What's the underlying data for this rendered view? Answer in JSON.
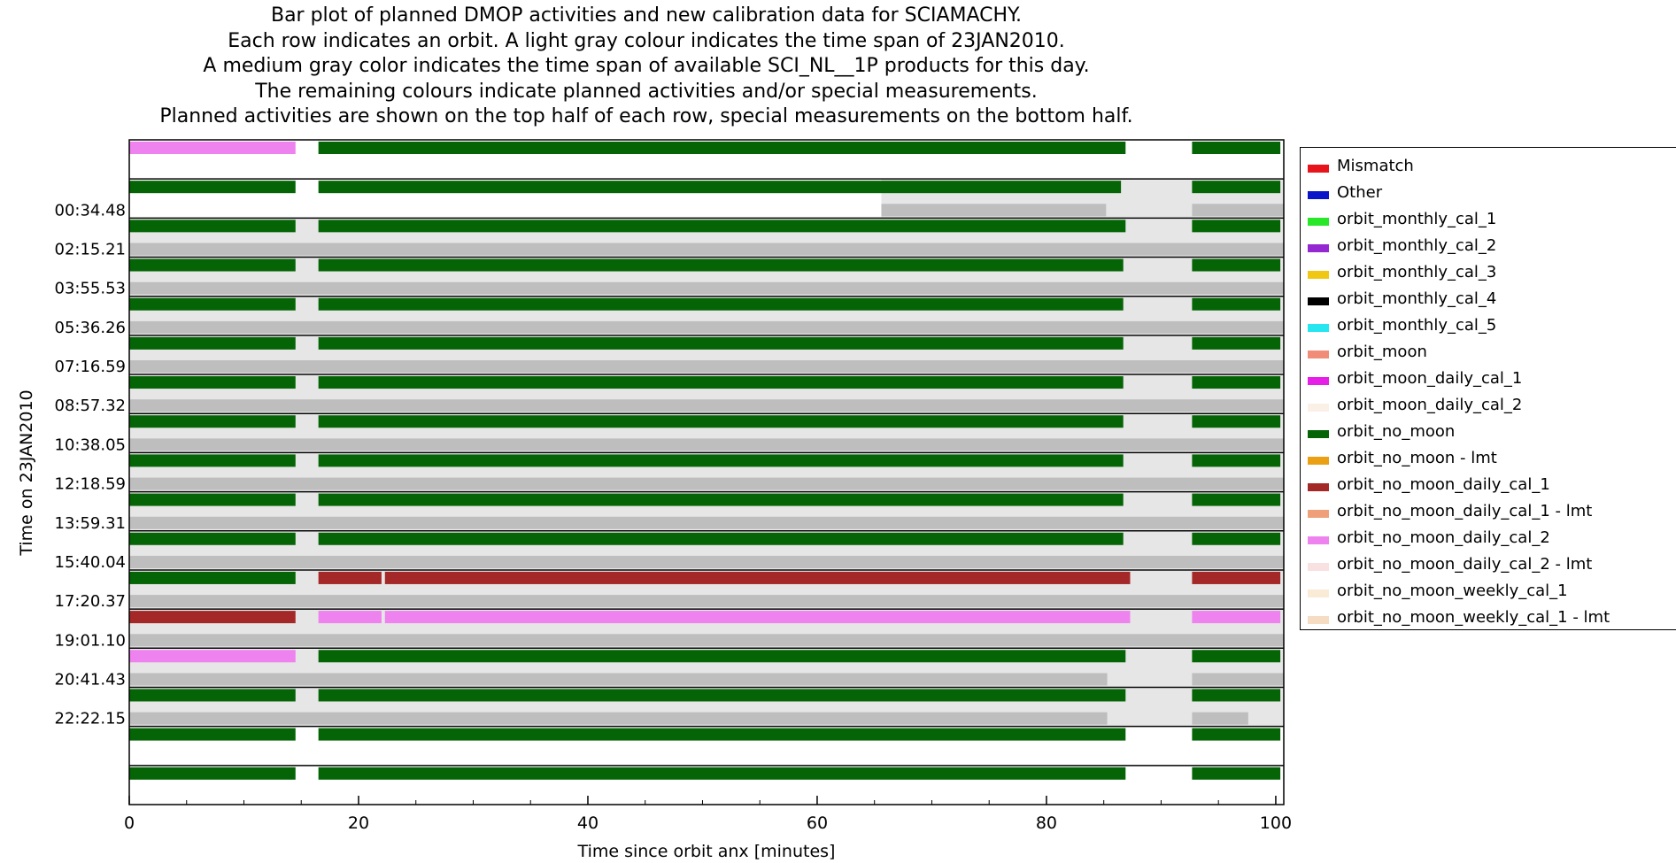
{
  "title_lines": [
    "Bar plot of planned DMOP activities and new calibration data for SCIAMACHY.",
    "Each row indicates an orbit. A light gray colour indicates the time span of 23JAN2010.",
    "A medium gray color indicates the time span of available SCI_NL__1P products for this day.",
    "The remaining colours indicate planned activities and/or special measurements.",
    "Planned activities are shown on the top half of each row, special measurements on the bottom half."
  ],
  "colors": {
    "light_gray": "#e6e6e6",
    "medium_gray": "#bebebe",
    "Mismatch": "#e8141c",
    "Other": "#0a14c8",
    "orbit_monthly_cal_1": "#28e628",
    "orbit_monthly_cal_2": "#9628d2",
    "orbit_monthly_cal_3": "#f0c814",
    "orbit_monthly_cal_4": "#000000",
    "orbit_monthly_cal_5": "#28e6f0",
    "orbit_moon": "#f08c78",
    "orbit_moon_daily_cal_1": "#e61ee6",
    "orbit_moon_daily_cal_2": "#faf0e6",
    "orbit_no_moon": "#056405",
    "orbit_no_moon - lmt": "#eba014",
    "orbit_no_moon_daily_cal_1": "#a52828",
    "orbit_no_moon_daily_cal_1 - lmt": "#f0a078",
    "orbit_no_moon_daily_cal_2": "#ee82ee",
    "orbit_no_moon_daily_cal_2 - lmt": "#fae1e1",
    "orbit_no_moon_weekly_cal_1": "#faebd7",
    "orbit_no_moon_weekly_cal_1 - lmt": "#f5dcc3"
  },
  "chart_data": {
    "type": "bar",
    "orientation": "horizontal",
    "xlabel": "Time since orbit anx [minutes]",
    "ylabel": "Time on 23JAN2010",
    "xlim": [
      0,
      100.7
    ],
    "xticks": [
      0,
      20,
      40,
      60,
      80,
      100
    ],
    "ytick_labels": [
      "00:34.48",
      "02:15.21",
      "03:55.53",
      "05:36.26",
      "07:16.59",
      "08:57.32",
      "10:38.05",
      "12:18.59",
      "13:59.31",
      "15:40.04",
      "17:20.37",
      "19:01.10",
      "20:41.43",
      "22:22.15"
    ],
    "grid": false,
    "legend_position": "right",
    "legend": [
      "Mismatch",
      "Other",
      "orbit_monthly_cal_1",
      "orbit_monthly_cal_2",
      "orbit_monthly_cal_3",
      "orbit_monthly_cal_4",
      "orbit_monthly_cal_5",
      "orbit_moon",
      "orbit_moon_daily_cal_1",
      "orbit_moon_daily_cal_2",
      "orbit_no_moon",
      "orbit_no_moon - lmt",
      "orbit_no_moon_daily_cal_1",
      "orbit_no_moon_daily_cal_1 - lmt",
      "orbit_no_moon_daily_cal_2",
      "orbit_no_moon_daily_cal_2 - lmt",
      "orbit_no_moon_weekly_cal_1",
      "orbit_no_moon_weekly_cal_1 - lmt"
    ],
    "rows": [
      {
        "day_span": null,
        "product_span": null,
        "top": [
          [
            "orbit_no_moon_daily_cal_2",
            0,
            14.5
          ],
          [
            "orbit_no_moon",
            16.5,
            86.9
          ],
          [
            "orbit_no_moon",
            92.7,
            100.4
          ]
        ],
        "bottom": []
      },
      {
        "day_span": [
          65.6,
          100.7
        ],
        "product_span": [
          [
            65.6,
            85.2
          ],
          [
            92.7,
            100.7
          ]
        ],
        "top": [
          [
            "orbit_no_moon",
            0,
            14.5
          ],
          [
            "orbit_no_moon",
            16.5,
            86.5
          ],
          [
            "orbit_no_moon",
            92.7,
            100.4
          ]
        ],
        "bottom": []
      },
      {
        "day_span": [
          0,
          100.7
        ],
        "product_span": [
          [
            0,
            100.7
          ]
        ],
        "top": [
          [
            "orbit_no_moon",
            0,
            14.5
          ],
          [
            "orbit_no_moon",
            16.5,
            86.9
          ],
          [
            "orbit_no_moon",
            92.7,
            100.4
          ]
        ],
        "bottom": []
      },
      {
        "day_span": [
          0,
          100.7
        ],
        "product_span": [
          [
            0,
            100.7
          ]
        ],
        "top": [
          [
            "orbit_no_moon",
            0,
            14.5
          ],
          [
            "orbit_no_moon",
            16.5,
            86.7
          ],
          [
            "orbit_no_moon",
            92.7,
            100.4
          ]
        ],
        "bottom": []
      },
      {
        "day_span": [
          0,
          100.7
        ],
        "product_span": [
          [
            0,
            100.7
          ]
        ],
        "top": [
          [
            "orbit_no_moon",
            0,
            14.5
          ],
          [
            "orbit_no_moon",
            16.5,
            86.7
          ],
          [
            "orbit_no_moon",
            92.7,
            100.4
          ]
        ],
        "bottom": []
      },
      {
        "day_span": [
          0,
          100.7
        ],
        "product_span": [
          [
            0,
            100.7
          ]
        ],
        "top": [
          [
            "orbit_no_moon",
            0,
            14.5
          ],
          [
            "orbit_no_moon",
            16.5,
            86.7
          ],
          [
            "orbit_no_moon",
            92.7,
            100.4
          ]
        ],
        "bottom": []
      },
      {
        "day_span": [
          0,
          100.7
        ],
        "product_span": [
          [
            0,
            100.7
          ]
        ],
        "top": [
          [
            "orbit_no_moon",
            0,
            14.5
          ],
          [
            "orbit_no_moon",
            16.5,
            86.7
          ],
          [
            "orbit_no_moon",
            92.7,
            100.4
          ]
        ],
        "bottom": []
      },
      {
        "day_span": [
          0,
          100.7
        ],
        "product_span": [
          [
            0,
            100.7
          ]
        ],
        "top": [
          [
            "orbit_no_moon",
            0,
            14.5
          ],
          [
            "orbit_no_moon",
            16.5,
            86.7
          ],
          [
            "orbit_no_moon",
            92.7,
            100.4
          ]
        ],
        "bottom": []
      },
      {
        "day_span": [
          0,
          100.7
        ],
        "product_span": [
          [
            0,
            100.7
          ]
        ],
        "top": [
          [
            "orbit_no_moon",
            0,
            14.5
          ],
          [
            "orbit_no_moon",
            16.5,
            86.7
          ],
          [
            "orbit_no_moon",
            92.7,
            100.4
          ]
        ],
        "bottom": []
      },
      {
        "day_span": [
          0,
          100.7
        ],
        "product_span": [
          [
            0,
            100.7
          ]
        ],
        "top": [
          [
            "orbit_no_moon",
            0,
            14.5
          ],
          [
            "orbit_no_moon",
            16.5,
            86.7
          ],
          [
            "orbit_no_moon",
            92.7,
            100.4
          ]
        ],
        "bottom": []
      },
      {
        "day_span": [
          0,
          100.7
        ],
        "product_span": [
          [
            0,
            100.7
          ]
        ],
        "top": [
          [
            "orbit_no_moon",
            0,
            14.5
          ],
          [
            "orbit_no_moon",
            16.5,
            86.7
          ],
          [
            "orbit_no_moon",
            92.7,
            100.4
          ]
        ],
        "bottom": []
      },
      {
        "day_span": [
          0,
          100.7
        ],
        "product_span": [
          [
            0,
            100.7
          ]
        ],
        "top": [
          [
            "orbit_no_moon",
            0,
            14.5
          ],
          [
            "orbit_no_moon_daily_cal_1",
            16.5,
            22.0
          ],
          [
            "orbit_no_moon_daily_cal_1",
            22.3,
            87.3
          ],
          [
            "orbit_no_moon_daily_cal_1",
            92.7,
            100.4
          ]
        ],
        "bottom": []
      },
      {
        "day_span": [
          0,
          100.7
        ],
        "product_span": [
          [
            0,
            100.7
          ]
        ],
        "top": [
          [
            "orbit_no_moon_daily_cal_1",
            0,
            14.5
          ],
          [
            "orbit_no_moon_daily_cal_2",
            16.5,
            22.0
          ],
          [
            "orbit_no_moon_daily_cal_2",
            22.3,
            87.3
          ],
          [
            "orbit_no_moon_daily_cal_2",
            92.7,
            100.4
          ]
        ],
        "bottom": []
      },
      {
        "day_span": [
          0,
          100.7
        ],
        "product_span": [
          [
            0,
            85.3
          ],
          [
            92.7,
            100.7
          ]
        ],
        "top": [
          [
            "orbit_no_moon_daily_cal_2",
            0,
            14.5
          ],
          [
            "orbit_no_moon",
            16.5,
            86.9
          ],
          [
            "orbit_no_moon",
            92.7,
            100.4
          ]
        ],
        "bottom": []
      },
      {
        "day_span": [
          0,
          100.7
        ],
        "product_span": [
          [
            0,
            85.3
          ],
          [
            92.7,
            97.6
          ]
        ],
        "top": [
          [
            "orbit_no_moon",
            0,
            14.5
          ],
          [
            "orbit_no_moon",
            16.5,
            86.9
          ],
          [
            "orbit_no_moon",
            92.7,
            100.4
          ]
        ],
        "bottom": []
      },
      {
        "day_span": null,
        "product_span": null,
        "top": [
          [
            "orbit_no_moon",
            0,
            14.5
          ],
          [
            "orbit_no_moon",
            16.5,
            86.9
          ],
          [
            "orbit_no_moon",
            92.7,
            100.4
          ]
        ],
        "bottom": []
      },
      {
        "day_span": null,
        "product_span": null,
        "top": [
          [
            "orbit_no_moon",
            0,
            14.5
          ],
          [
            "orbit_no_moon",
            16.5,
            86.9
          ],
          [
            "orbit_no_moon",
            92.7,
            100.4
          ]
        ],
        "bottom": []
      }
    ]
  }
}
